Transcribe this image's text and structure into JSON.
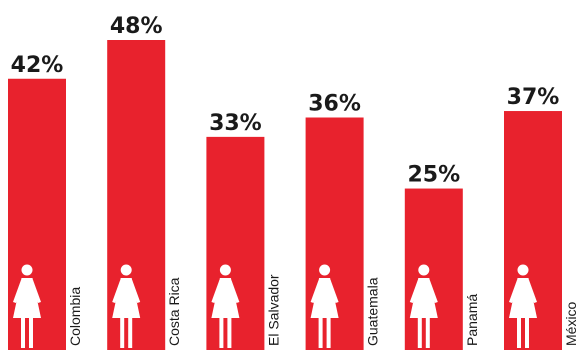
{
  "chart_data": {
    "type": "bar",
    "categories": [
      "Colombia",
      "Costa Rica",
      "El Salvador",
      "Guatemala",
      "Panamá",
      "México"
    ],
    "values": [
      42,
      48,
      33,
      36,
      25,
      37
    ],
    "value_labels": [
      "42%",
      "48%",
      "33%",
      "36%",
      "25%",
      "37%"
    ],
    "ylim": [
      0,
      48
    ],
    "title": "",
    "xlabel": "",
    "ylabel": "",
    "grid": false,
    "legend": "none",
    "bar_icon": "woman-icon",
    "colors": {
      "bar": "#e8222d",
      "text": "#1a1a1a",
      "icon": "#ffffff",
      "background": "#ffffff"
    }
  }
}
